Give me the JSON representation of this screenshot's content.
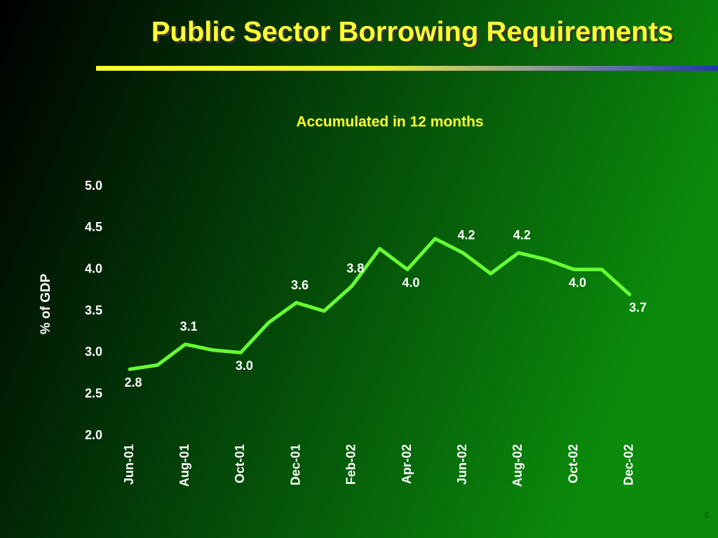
{
  "chart_data": {
    "type": "line",
    "title": "Public Sector Borrowing Requirements",
    "subtitle": "Accumulated in 12 months",
    "ylabel": "% of GDP",
    "categories": [
      "Jun-01",
      null,
      "Aug-01",
      null,
      "Oct-01",
      null,
      "Dec-01",
      null,
      "Feb-02",
      null,
      "Apr-02",
      null,
      "Jun-02",
      null,
      "Aug-02",
      null,
      "Oct-02",
      null,
      "Dec-02"
    ],
    "values": [
      2.8,
      2.85,
      3.1,
      3.03,
      3.0,
      3.36,
      3.6,
      3.5,
      3.8,
      4.25,
      4.0,
      4.37,
      4.2,
      3.95,
      4.2,
      4.12,
      4.0,
      4.0,
      3.7
    ],
    "value_labels": [
      "2.8",
      null,
      "3.1",
      null,
      "3.0",
      null,
      "3.6",
      null,
      "3.8",
      null,
      "4.0",
      null,
      "4.2",
      null,
      "4.2",
      null,
      "4.0",
      null,
      "3.7"
    ],
    "color": "#66ff33",
    "ylim": [
      2.0,
      5.0
    ],
    "yticks": [
      {
        "value": 2.0,
        "label": "2.0"
      },
      2.5,
      {
        "value": 3.0,
        "label": "3.0"
      },
      3.5,
      {
        "value": 4.0,
        "label": "4.0"
      },
      4.5,
      {
        "value": 5.0,
        "label": "5.0"
      }
    ],
    "page_number": "6"
  }
}
